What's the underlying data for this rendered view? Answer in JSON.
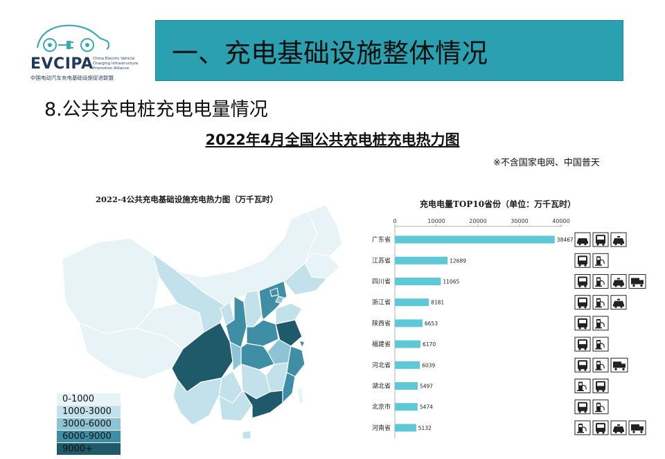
{
  "logo": {
    "name": "EVCIPA",
    "english": "China Electric Vehicle Charging Infrastructure Promotion Alliance",
    "chinese": "中国电动汽车充电基础设施促进联盟"
  },
  "header": {
    "title": "一、充电基础设施整体情况"
  },
  "section_title": "8.公共充电桩充电电量情况",
  "heading": {
    "title": "2022年4月全国公共充电桩充电热力图",
    "note": "※不含国家电网、中国普天"
  },
  "map": {
    "title": "2022-4公共充电基础设施充电热力图（万千瓦时）",
    "legend": [
      {
        "label": "0-1000",
        "color": "#e8f3f7"
      },
      {
        "label": "1000-3000",
        "color": "#c3e1ea"
      },
      {
        "label": "3000-6000",
        "color": "#8dc3d4"
      },
      {
        "label": "6000-9000",
        "color": "#3e8fa5"
      },
      {
        "label": "9000+",
        "color": "#1f5a6a"
      }
    ]
  },
  "chart_data": {
    "type": "bar",
    "orientation": "horizontal",
    "title": "充电电量TOP10省份（单位：万千瓦时）",
    "categories": [
      "广东省",
      "江苏省",
      "四川省",
      "浙江省",
      "陕西省",
      "福建省",
      "河北省",
      "湖北省",
      "北京市",
      "河南省"
    ],
    "values": [
      38467,
      12689,
      11065,
      8181,
      6653,
      6170,
      6039,
      5497,
      5474,
      5132
    ],
    "xlim": [
      0,
      40000
    ],
    "xticks": [
      0,
      10000,
      20000,
      30000,
      40000
    ],
    "bar_color": "#5ec8d6",
    "data_labels": true,
    "vehicle_icons": [
      [
        "car-icon",
        "bus-icon",
        "taxi-icon"
      ],
      [
        "bus-icon",
        "charger-icon"
      ],
      [
        "bus-icon",
        "charger-icon",
        "taxi-icon",
        "truck-icon"
      ],
      [
        "bus-icon",
        "charger-icon",
        "taxi-icon"
      ],
      [
        "bus-icon",
        "charger-icon"
      ],
      [
        "bus-icon",
        "charger-icon"
      ],
      [
        "bus-icon",
        "charger-icon",
        "truck-icon"
      ],
      [
        "charger-icon",
        "bus-icon"
      ],
      [
        "bus-icon",
        "charger-icon"
      ],
      [
        "charger-icon",
        "bus-icon",
        "taxi-icon",
        "truck-icon"
      ]
    ]
  }
}
